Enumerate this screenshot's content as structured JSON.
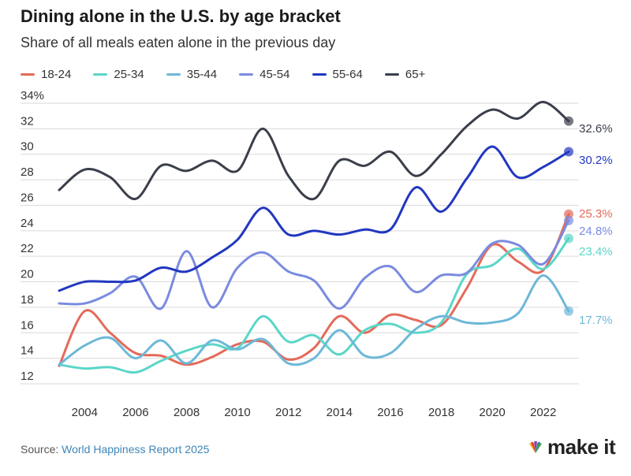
{
  "header": {
    "title": "Dining alone in the U.S. by age bracket",
    "subtitle": "Share of all meals eaten alone in the previous day"
  },
  "footer": {
    "source_label": "Source:",
    "source_name": "World Happiness Report 2025",
    "brand": "make it",
    "brand_logo": "CNBC"
  },
  "chart_data": {
    "type": "line",
    "title": "Dining alone in the U.S. by age bracket",
    "subtitle": "Share of all meals eaten alone in the previous day",
    "x": [
      2003,
      2004,
      2005,
      2006,
      2007,
      2008,
      2009,
      2010,
      2011,
      2012,
      2013,
      2014,
      2015,
      2016,
      2017,
      2018,
      2019,
      2020,
      2021,
      2022,
      2023
    ],
    "xticks": [
      "2004",
      "2006",
      "2008",
      "2010",
      "2012",
      "2014",
      "2016",
      "2018",
      "2020",
      "2022"
    ],
    "yticks": [
      "34%",
      "32",
      "30",
      "28",
      "26",
      "24",
      "22",
      "20",
      "18",
      "16",
      "14",
      "12"
    ],
    "ylim": [
      12,
      34
    ],
    "grid": true,
    "legend_position": "top-left",
    "series": [
      {
        "name": "18-24",
        "color": "#e46a5a",
        "end_label": "25.3%",
        "values": [
          13.4,
          17.7,
          16.0,
          14.4,
          14.2,
          13.5,
          14.1,
          15.1,
          15.3,
          13.9,
          14.8,
          17.3,
          16.0,
          17.4,
          17.0,
          16.6,
          19.5,
          22.9,
          21.6,
          20.9,
          25.3
        ]
      },
      {
        "name": "25-34",
        "color": "#5ad6c8",
        "end_label": "23.4%",
        "values": [
          13.5,
          13.2,
          13.3,
          12.9,
          13.8,
          14.6,
          15.1,
          14.8,
          17.3,
          15.3,
          15.8,
          14.3,
          16.2,
          16.7,
          16.0,
          16.8,
          20.6,
          21.3,
          22.6,
          21.0,
          23.4
        ]
      },
      {
        "name": "35-44",
        "color": "#6db8d8",
        "end_label": "17.7%",
        "values": [
          13.5,
          15.0,
          15.6,
          14.0,
          15.4,
          13.6,
          15.4,
          14.7,
          15.5,
          13.6,
          14.0,
          16.2,
          14.2,
          14.4,
          16.3,
          17.3,
          16.8,
          16.8,
          17.5,
          20.5,
          17.7
        ]
      },
      {
        "name": "45-54",
        "color": "#7a8be0",
        "end_label": "24.8%",
        "values": [
          18.3,
          18.3,
          19.1,
          20.4,
          17.9,
          22.4,
          18.0,
          21.1,
          22.3,
          20.8,
          20.1,
          17.9,
          20.3,
          21.2,
          19.2,
          20.5,
          20.7,
          23.0,
          22.9,
          21.4,
          24.8
        ]
      },
      {
        "name": "55-64",
        "color": "#2237c0",
        "end_label": "30.2%",
        "values": [
          19.3,
          20.0,
          20.0,
          20.1,
          21.1,
          20.8,
          21.9,
          23.3,
          25.8,
          23.7,
          24.0,
          23.7,
          24.1,
          24.1,
          27.4,
          25.5,
          28.1,
          30.6,
          28.2,
          29.0,
          30.2
        ]
      },
      {
        "name": "65+",
        "color": "#3a3f4a",
        "end_label": "32.6%",
        "values": [
          27.2,
          28.8,
          28.2,
          26.5,
          29.1,
          28.7,
          29.5,
          28.7,
          32.0,
          28.3,
          26.5,
          29.5,
          29.1,
          30.2,
          28.3,
          30.0,
          32.2,
          33.5,
          32.8,
          34.1,
          32.6
        ]
      }
    ]
  }
}
